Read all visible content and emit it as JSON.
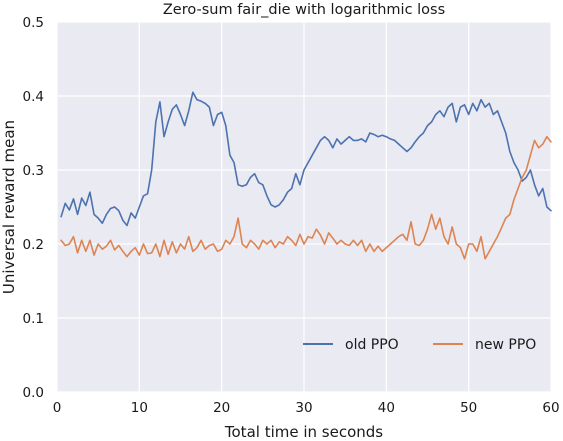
{
  "chart_data": {
    "type": "line",
    "title": "Zero-sum fair_die with logarithmic loss",
    "xlabel": "Total time in seconds",
    "ylabel": "Universal reward mean",
    "xlim": [
      0,
      60
    ],
    "ylim": [
      0,
      0.5
    ],
    "xticks": [
      "0",
      "10",
      "20",
      "30",
      "40",
      "50",
      "60"
    ],
    "yticks": [
      "0.0",
      "0.1",
      "0.2",
      "0.3",
      "0.4",
      "0.5"
    ],
    "grid": true,
    "legend": "lower-right",
    "background": "#eaeaf2",
    "series": [
      {
        "name": "old PPO",
        "color": "#4c72b0",
        "x": [
          0.5,
          1,
          1.5,
          2,
          2.5,
          3,
          3.5,
          4,
          4.5,
          5,
          5.5,
          6,
          6.5,
          7,
          7.5,
          8,
          8.5,
          9,
          9.5,
          10,
          10.5,
          11,
          11.5,
          12,
          12.5,
          13,
          13.5,
          14,
          14.5,
          15,
          15.5,
          16,
          16.5,
          17,
          17.5,
          18,
          18.5,
          19,
          19.5,
          20,
          20.5,
          21,
          21.5,
          22,
          22.5,
          23,
          23.5,
          24,
          24.5,
          25,
          25.5,
          26,
          26.5,
          27,
          27.5,
          28,
          28.5,
          29,
          29.5,
          30,
          30.5,
          31,
          31.5,
          32,
          32.5,
          33,
          33.5,
          34,
          34.5,
          35,
          35.5,
          36,
          36.5,
          37,
          37.5,
          38,
          38.5,
          39,
          39.5,
          40,
          40.5,
          41,
          41.5,
          42,
          42.5,
          43,
          43.5,
          44,
          44.5,
          45,
          45.5,
          46,
          46.5,
          47,
          47.5,
          48,
          48.5,
          49,
          49.5,
          50,
          50.5,
          51,
          51.5,
          52,
          52.5,
          53,
          53.5,
          54,
          54.5,
          55,
          55.5,
          56,
          56.5,
          57,
          57.5,
          58,
          58.5,
          59,
          59.5,
          60
        ],
        "y": [
          0.237,
          0.255,
          0.246,
          0.261,
          0.24,
          0.262,
          0.252,
          0.27,
          0.24,
          0.235,
          0.228,
          0.24,
          0.248,
          0.25,
          0.245,
          0.232,
          0.225,
          0.242,
          0.235,
          0.25,
          0.265,
          0.268,
          0.3,
          0.365,
          0.392,
          0.345,
          0.365,
          0.382,
          0.388,
          0.375,
          0.36,
          0.38,
          0.405,
          0.395,
          0.393,
          0.39,
          0.385,
          0.36,
          0.375,
          0.378,
          0.36,
          0.32,
          0.31,
          0.28,
          0.278,
          0.28,
          0.29,
          0.295,
          0.283,
          0.28,
          0.265,
          0.253,
          0.25,
          0.253,
          0.26,
          0.27,
          0.275,
          0.295,
          0.28,
          0.3,
          0.31,
          0.32,
          0.33,
          0.34,
          0.345,
          0.34,
          0.33,
          0.342,
          0.335,
          0.34,
          0.345,
          0.34,
          0.34,
          0.342,
          0.338,
          0.35,
          0.348,
          0.345,
          0.347,
          0.345,
          0.342,
          0.34,
          0.335,
          0.33,
          0.325,
          0.33,
          0.338,
          0.345,
          0.35,
          0.36,
          0.365,
          0.375,
          0.38,
          0.372,
          0.385,
          0.39,
          0.365,
          0.385,
          0.388,
          0.375,
          0.39,
          0.38,
          0.395,
          0.385,
          0.39,
          0.375,
          0.38,
          0.365,
          0.35,
          0.325,
          0.31,
          0.3,
          0.285,
          0.29,
          0.3,
          0.28,
          0.265,
          0.275,
          0.25,
          0.245
        ],
        "label": "old PPO"
      },
      {
        "name": "new PPO",
        "color": "#dd8452",
        "x": [
          0.5,
          1,
          1.5,
          2,
          2.5,
          3,
          3.5,
          4,
          4.5,
          5,
          5.5,
          6,
          6.5,
          7,
          7.5,
          8,
          8.5,
          9,
          9.5,
          10,
          10.5,
          11,
          11.5,
          12,
          12.5,
          13,
          13.5,
          14,
          14.5,
          15,
          15.5,
          16,
          16.5,
          17,
          17.5,
          18,
          18.5,
          19,
          19.5,
          20,
          20.5,
          21,
          21.5,
          22,
          22.5,
          23,
          23.5,
          24,
          24.5,
          25,
          25.5,
          26,
          26.5,
          27,
          27.5,
          28,
          28.5,
          29,
          29.5,
          30,
          30.5,
          31,
          31.5,
          32,
          32.5,
          33,
          33.5,
          34,
          34.5,
          35,
          35.5,
          36,
          36.5,
          37,
          37.5,
          38,
          38.5,
          39,
          39.5,
          40,
          40.5,
          41,
          41.5,
          42,
          42.5,
          43,
          43.5,
          44,
          44.5,
          45,
          45.5,
          46,
          46.5,
          47,
          47.5,
          48,
          48.5,
          49,
          49.5,
          50,
          50.5,
          51,
          51.5,
          52,
          52.5,
          53,
          53.5,
          54,
          54.5,
          55,
          55.5,
          56,
          56.5,
          57,
          57.5,
          58,
          58.5,
          59,
          59.5,
          60
        ],
        "y": [
          0.205,
          0.198,
          0.2,
          0.21,
          0.188,
          0.205,
          0.19,
          0.205,
          0.185,
          0.2,
          0.193,
          0.197,
          0.205,
          0.192,
          0.198,
          0.19,
          0.183,
          0.19,
          0.195,
          0.185,
          0.2,
          0.187,
          0.188,
          0.2,
          0.183,
          0.205,
          0.186,
          0.203,
          0.188,
          0.2,
          0.193,
          0.21,
          0.19,
          0.195,
          0.205,
          0.193,
          0.198,
          0.2,
          0.19,
          0.193,
          0.205,
          0.2,
          0.21,
          0.235,
          0.2,
          0.195,
          0.205,
          0.2,
          0.193,
          0.205,
          0.2,
          0.205,
          0.195,
          0.203,
          0.2,
          0.21,
          0.205,
          0.198,
          0.213,
          0.2,
          0.21,
          0.208,
          0.22,
          0.212,
          0.2,
          0.215,
          0.208,
          0.2,
          0.205,
          0.2,
          0.198,
          0.205,
          0.198,
          0.205,
          0.19,
          0.2,
          0.19,
          0.197,
          0.19,
          0.195,
          0.2,
          0.205,
          0.21,
          0.213,
          0.205,
          0.23,
          0.2,
          0.198,
          0.205,
          0.22,
          0.24,
          0.22,
          0.235,
          0.21,
          0.2,
          0.223,
          0.2,
          0.195,
          0.18,
          0.2,
          0.2,
          0.19,
          0.21,
          0.18,
          0.19,
          0.2,
          0.21,
          0.222,
          0.235,
          0.24,
          0.26,
          0.275,
          0.29,
          0.3,
          0.32,
          0.34,
          0.33,
          0.335,
          0.345,
          0.338
        ],
        "label": "new PPO"
      }
    ]
  }
}
